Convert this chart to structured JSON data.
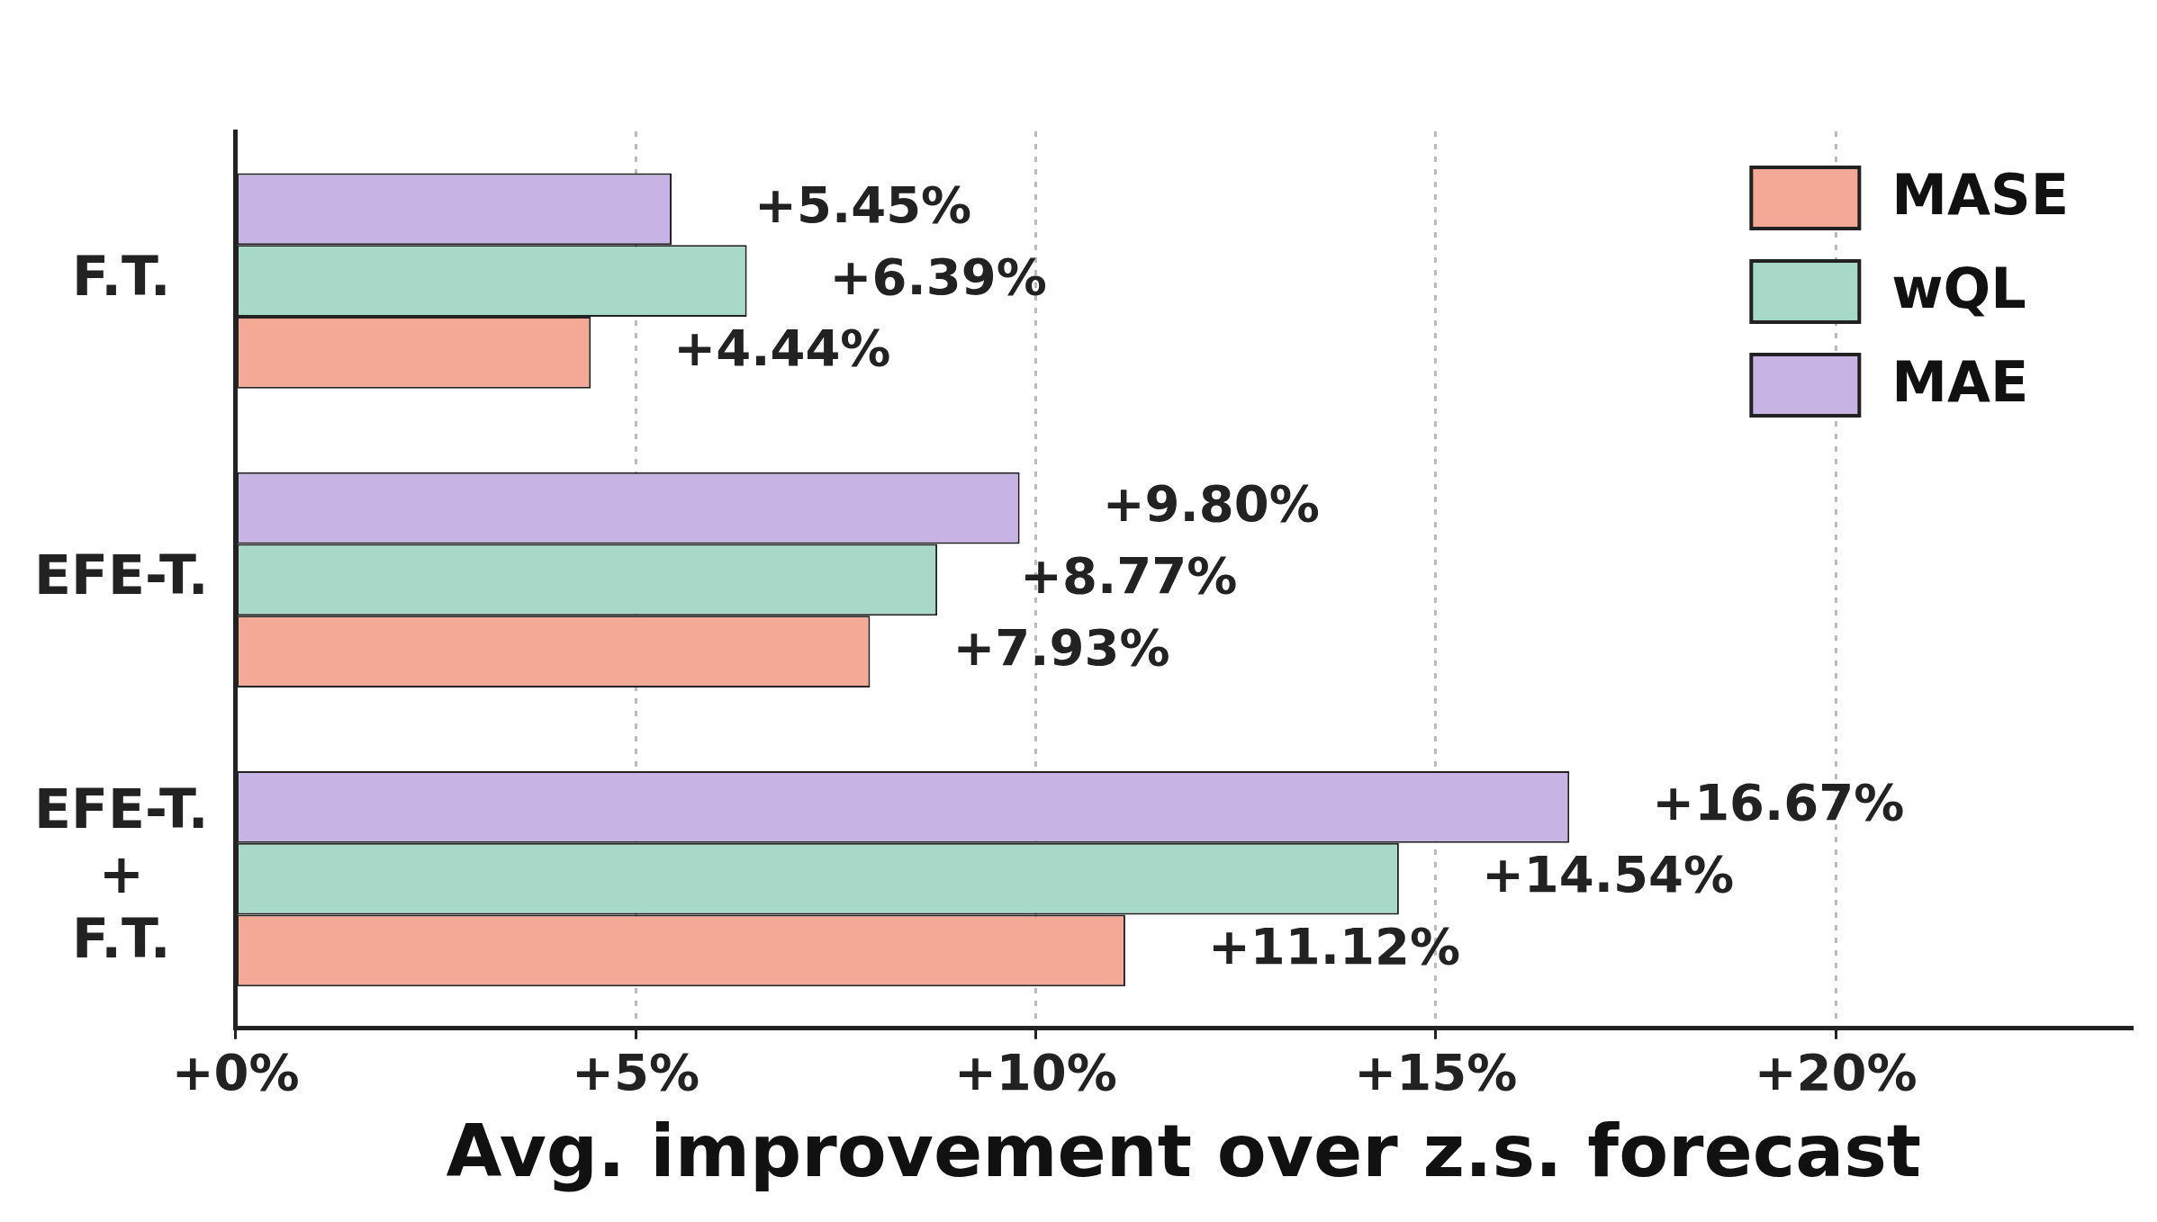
{
  "chart_data": {
    "type": "bar",
    "orientation": "horizontal",
    "xlabel": "Avg. improvement over z.s. forecast",
    "categories": [
      "F.T.",
      "EFE-T.",
      "EFE-T.\n+\nF.T."
    ],
    "series": [
      {
        "name": "MASE",
        "color": "#f4a896",
        "values": [
          4.44,
          7.93,
          11.12
        ],
        "value_labels": [
          "+4.44%",
          "+7.93%",
          "+11.12%"
        ]
      },
      {
        "name": "wQL",
        "color": "#a8d8c8",
        "values": [
          6.39,
          8.77,
          14.54
        ],
        "value_labels": [
          "+6.39%",
          "+8.77%",
          "+14.54%"
        ]
      },
      {
        "name": "MAE",
        "color": "#c8b4e4",
        "values": [
          5.45,
          9.8,
          16.67
        ],
        "value_labels": [
          "+5.45%",
          "+9.80%",
          "+16.67%"
        ]
      }
    ],
    "xlim": [
      0,
      23.7
    ],
    "xticks": [
      {
        "value": 0,
        "label": "+0%"
      },
      {
        "value": 5,
        "label": "+5%"
      },
      {
        "value": 10,
        "label": "+10%"
      },
      {
        "value": 15,
        "label": "+15%"
      },
      {
        "value": 20,
        "label": "+20%"
      }
    ],
    "grid": "x",
    "legend": "top right"
  }
}
